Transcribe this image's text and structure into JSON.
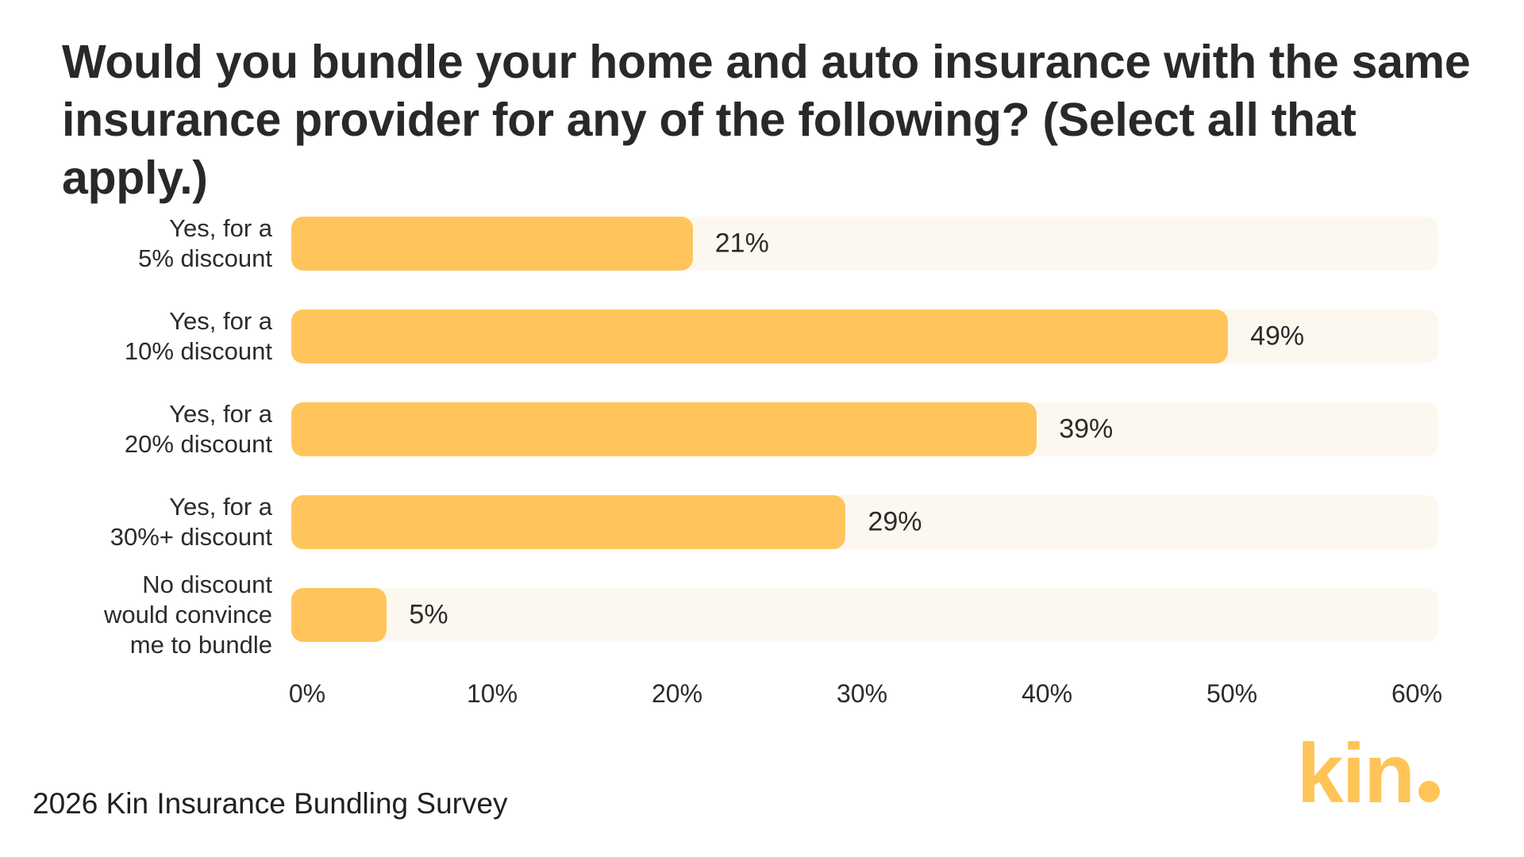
{
  "title": {
    "text": "Would you bundle your home and auto insurance with the same insurance provider for any of the following? (Select all that apply.)",
    "lines": [
      "Would you bundle your home and auto insurance with the same",
      "insurance provider for any of the following? (Select all that apply.)"
    ]
  },
  "chart_data": {
    "type": "bar",
    "orientation": "horizontal",
    "title": "Would you bundle your home and auto insurance with the same insurance provider for any of the following? (Select all that apply.)",
    "categories": [
      "Yes, for a 5% discount",
      "Yes, for a 10% discount",
      "Yes, for a 20% discount",
      "Yes, for a 30%+ discount",
      "No discount would convince me to bundle"
    ],
    "category_lines": [
      [
        "Yes, for a",
        "5% discount"
      ],
      [
        "Yes, for a",
        "10% discount"
      ],
      [
        "Yes, for a",
        "20% discount"
      ],
      [
        "Yes, for a",
        "30%+ discount"
      ],
      [
        "No discount",
        "would convince",
        "me to bundle"
      ]
    ],
    "values": [
      21,
      49,
      39,
      29,
      5
    ],
    "value_labels": [
      "21%",
      "49%",
      "39%",
      "29%",
      "5%"
    ],
    "xlim": [
      0,
      60
    ],
    "x_tick_labels": [
      "0%",
      "10%",
      "20%",
      "30%",
      "40%",
      "50%",
      "60%"
    ],
    "grid": false,
    "legend": false,
    "colors": {
      "bar_fill": "#FFC55C",
      "bar_track": "#FDF8EF",
      "text": "#2B2B2B"
    }
  },
  "footer": {
    "source_text": "2026 Kin Insurance Bundling Survey"
  },
  "logo": {
    "text": "kin",
    "suffix_dot": ".",
    "color": "#FFC457"
  }
}
